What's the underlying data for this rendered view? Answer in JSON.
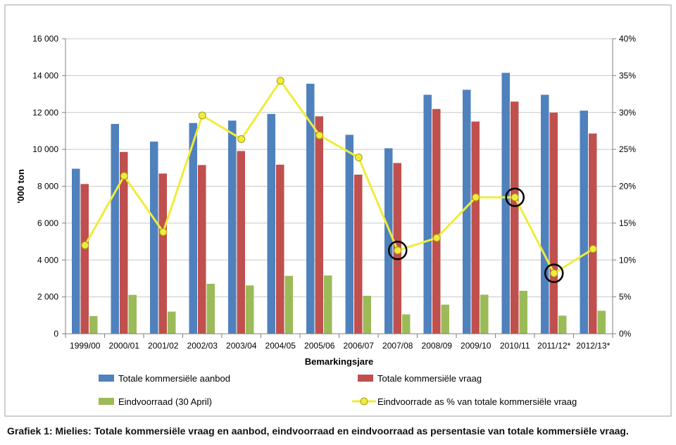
{
  "caption": "Grafiek 1: Mielies: Totale kommersiële vraag en aanbod, eindvoorraad en eindvoorraad as persentasie van totale kommersiële vraag.",
  "chart_data": {
    "type": "bar",
    "xlabel": "Bemarkingsjare",
    "ylabel": "'000 ton",
    "ylim": [
      0,
      16000
    ],
    "y2lim": [
      0,
      0.4
    ],
    "yticks": [
      "0",
      "2 000",
      "4 000",
      "6 000",
      "8 000",
      "10 000",
      "12 000",
      "14 000",
      "16 000"
    ],
    "ytick_values": [
      0,
      2000,
      4000,
      6000,
      8000,
      10000,
      12000,
      14000,
      16000
    ],
    "y2ticks": [
      "0%",
      "5%",
      "10%",
      "15%",
      "20%",
      "25%",
      "30%",
      "35%",
      "40%"
    ],
    "y2tick_values": [
      0,
      0.05,
      0.1,
      0.15,
      0.2,
      0.25,
      0.3,
      0.35,
      0.4
    ],
    "grid": true,
    "legend_position": "bottom",
    "categories": [
      "1999/00",
      "2000/01",
      "2001/02",
      "2002/03",
      "2003/04",
      "2004/05",
      "2005/06",
      "2006/07",
      "2007/08",
      "2008/09",
      "2009/10",
      "2010/11",
      "2011/12*",
      "2012/13*"
    ],
    "series": [
      {
        "name": "Totale kommersiële aanbod",
        "type": "bar",
        "axis": "left",
        "color": "#4F81BD",
        "values": [
          8950,
          11380,
          10420,
          11430,
          11560,
          11920,
          13560,
          10790,
          10060,
          12960,
          13230,
          14150,
          12960,
          12100
        ]
      },
      {
        "name": "Totale kommersiële vraag",
        "type": "bar",
        "axis": "left",
        "color": "#C0504D",
        "values": [
          8120,
          9860,
          8690,
          9150,
          9910,
          9170,
          11790,
          8630,
          9260,
          12190,
          11510,
          12590,
          11990,
          10860
        ]
      },
      {
        "name": "Eindvoorraad (30 April)",
        "type": "bar",
        "axis": "left",
        "color": "#9BBB59",
        "values": [
          960,
          2110,
          1200,
          2710,
          2620,
          3140,
          3160,
          2060,
          1050,
          1580,
          2120,
          2330,
          980,
          1250
        ]
      },
      {
        "name": "Eindvoorrade as % van totale kommersiële vraag",
        "type": "line",
        "axis": "right",
        "color": "#F0EC3A",
        "values": [
          0.12,
          0.214,
          0.138,
          0.296,
          0.264,
          0.343,
          0.269,
          0.239,
          0.113,
          0.13,
          0.185,
          0.185,
          0.082,
          0.115
        ]
      }
    ],
    "highlighted_points": [
      "2007/08",
      "2010/11",
      "2011/12*"
    ]
  }
}
